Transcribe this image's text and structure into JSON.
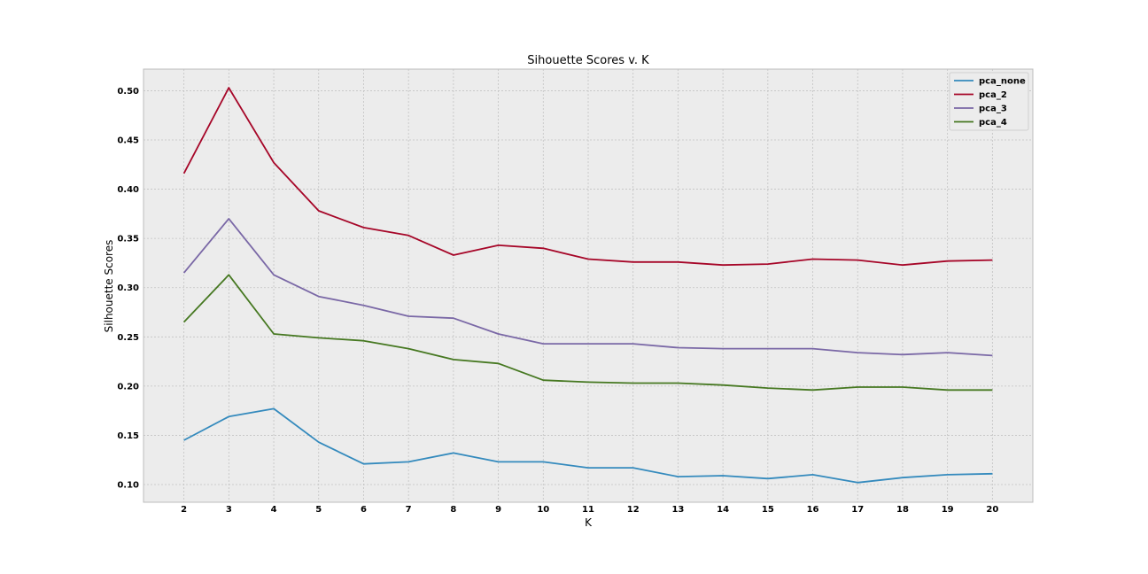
{
  "chart_data": {
    "type": "line",
    "title": "Sihouette Scores v. K",
    "xlabel": "K",
    "ylabel": "Silhouette Scores",
    "x": [
      2,
      3,
      4,
      5,
      6,
      7,
      8,
      9,
      10,
      11,
      12,
      13,
      14,
      15,
      16,
      17,
      18,
      19,
      20
    ],
    "xlim": [
      1.1,
      20.9
    ],
    "ylim": [
      0.082,
      0.522
    ],
    "yticks": [
      0.1,
      0.15,
      0.2,
      0.25,
      0.3,
      0.35,
      0.4,
      0.45,
      0.5
    ],
    "grid": true,
    "legend_position": "top-right",
    "series": [
      {
        "name": "pca_none",
        "color": "#348abd",
        "values": [
          0.145,
          0.169,
          0.177,
          0.143,
          0.121,
          0.123,
          0.132,
          0.123,
          0.123,
          0.117,
          0.117,
          0.108,
          0.109,
          0.106,
          0.11,
          0.102,
          0.107,
          0.11,
          0.111
        ]
      },
      {
        "name": "pca_2",
        "color": "#a60628",
        "values": [
          0.416,
          0.503,
          0.427,
          0.378,
          0.361,
          0.353,
          0.333,
          0.343,
          0.34,
          0.329,
          0.326,
          0.326,
          0.323,
          0.324,
          0.329,
          0.328,
          0.323,
          0.327,
          0.328
        ]
      },
      {
        "name": "pca_3",
        "color": "#7a68a6",
        "values": [
          0.315,
          0.37,
          0.313,
          0.291,
          0.282,
          0.271,
          0.269,
          0.253,
          0.243,
          0.243,
          0.243,
          0.239,
          0.238,
          0.238,
          0.238,
          0.234,
          0.232,
          0.234,
          0.231
        ]
      },
      {
        "name": "pca_4",
        "color": "#467821",
        "values": [
          0.265,
          0.313,
          0.253,
          0.249,
          0.246,
          0.238,
          0.227,
          0.223,
          0.206,
          0.204,
          0.203,
          0.203,
          0.201,
          0.198,
          0.196,
          0.199,
          0.199,
          0.196,
          0.196
        ]
      }
    ]
  }
}
